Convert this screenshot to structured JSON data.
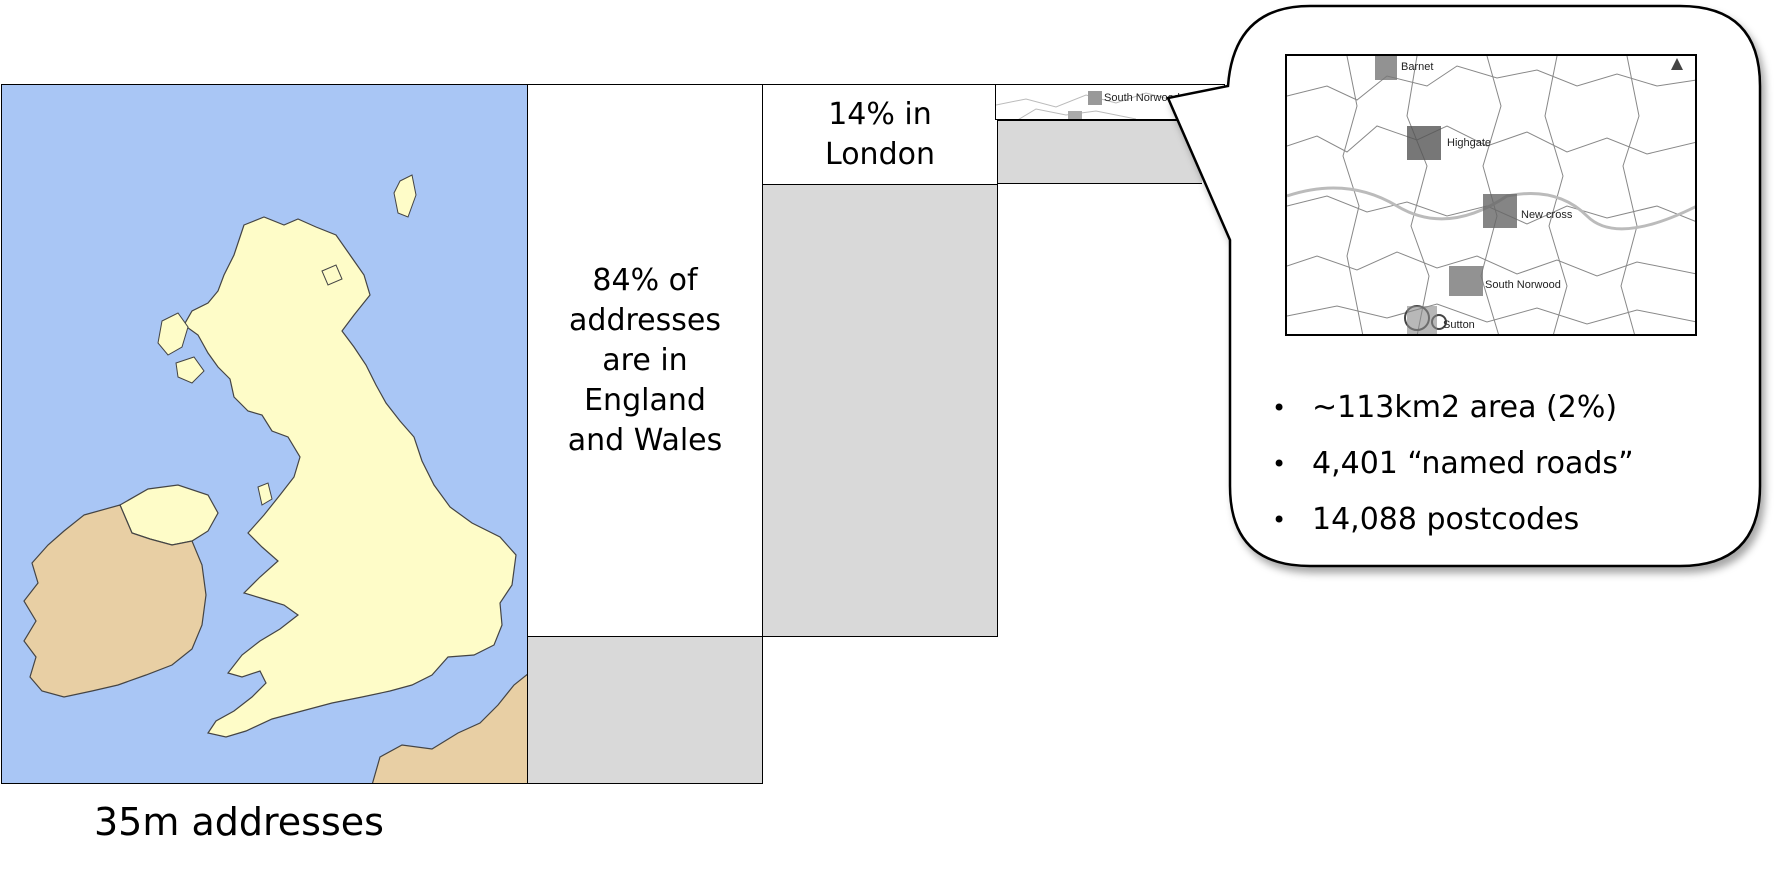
{
  "caption": "35m addresses",
  "england_wales_text": "84% of\naddresses\nare in\nEngland\nand Wales",
  "london_text": "14% in\nLondon",
  "thumb_label": "South Norwood",
  "inset_map": {
    "places": [
      "Barnet",
      "Highgate",
      "New cross",
      "South Norwood",
      "Sutton"
    ]
  },
  "stats": [
    "~113km2 area (2%)",
    "4,401 “named roads”",
    "14,088 postcodes"
  ],
  "colors": {
    "sea": "#a9c6f5",
    "land_uk": "#fefcc8",
    "land_other": "#e8cfa4",
    "grey_block": "#d9d9d9"
  }
}
